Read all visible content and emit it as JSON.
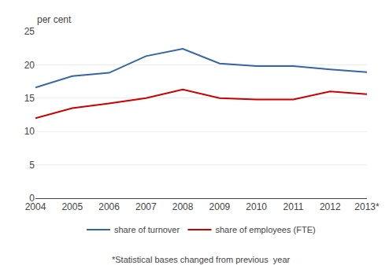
{
  "chart_data": {
    "type": "line",
    "y_label": "per cent",
    "annotations": [
      "*Statistical bases changed from previous  year"
    ],
    "categories": [
      "2004",
      "2005",
      "2006",
      "2007",
      "2008",
      "2009",
      "2010",
      "2011",
      "2012",
      "2013*"
    ],
    "series": [
      {
        "name": "share of turnover",
        "color": "#3465a4",
        "values": [
          16.6,
          18.3,
          18.8,
          21.3,
          22.4,
          20.2,
          19.8,
          19.8,
          19.3,
          18.9
        ]
      },
      {
        "name": "share of employees (FTE)",
        "color": "#cc0000",
        "values": [
          12.0,
          13.5,
          14.2,
          15.0,
          16.3,
          15.0,
          14.8,
          14.8,
          16.0,
          15.6
        ]
      }
    ],
    "ylim": [
      0,
      25
    ],
    "yticks": [
      0,
      5,
      10,
      15,
      20,
      25
    ],
    "grid": true,
    "legend": "bottom"
  }
}
